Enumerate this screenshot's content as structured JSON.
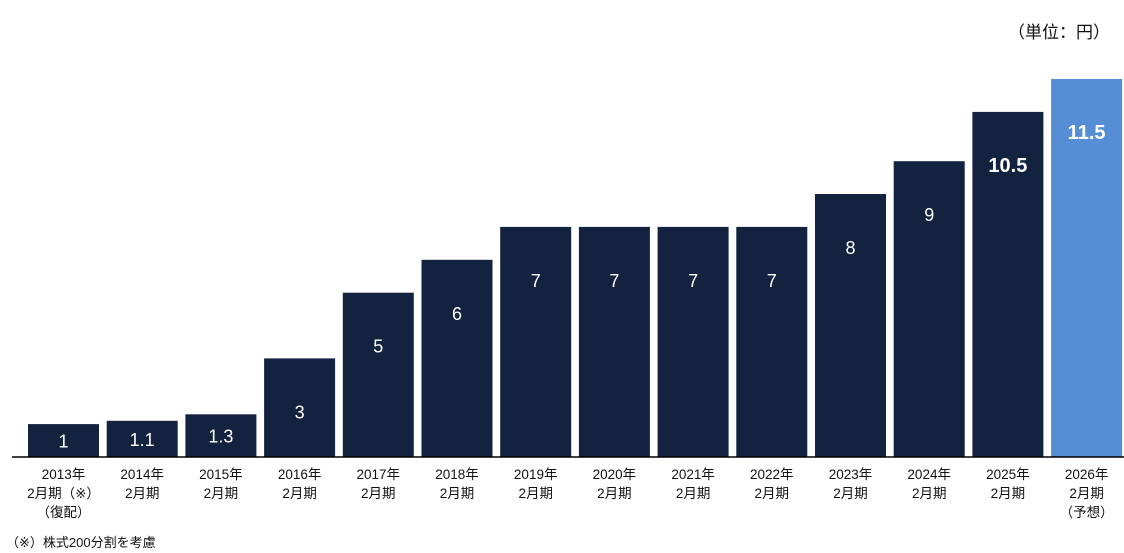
{
  "unit_label": "（単位：円）",
  "footnote": "（※）株式200分割を考慮",
  "colors": {
    "bar": "#13233f",
    "forecast_bar": "#558ed5",
    "label_text": "#ffffff",
    "axis": "#000000"
  },
  "chart_data": {
    "type": "bar",
    "categories": [
      [
        "2013年",
        "2月期（※）",
        "（復配）"
      ],
      [
        "2014年",
        "2月期"
      ],
      [
        "2015年",
        "2月期"
      ],
      [
        "2016年",
        "2月期"
      ],
      [
        "2017年",
        "2月期"
      ],
      [
        "2018年",
        "2月期"
      ],
      [
        "2019年",
        "2月期"
      ],
      [
        "2020年",
        "2月期"
      ],
      [
        "2021年",
        "2月期"
      ],
      [
        "2022年",
        "2月期"
      ],
      [
        "2023年",
        "2月期"
      ],
      [
        "2024年",
        "2月期"
      ],
      [
        "2025年",
        "2月期"
      ],
      [
        "2026年",
        "2月期",
        "（予想）"
      ]
    ],
    "values": [
      1,
      1.1,
      1.3,
      3,
      5,
      6,
      7,
      7,
      7,
      7,
      8,
      9,
      10.5,
      11.5
    ],
    "value_labels": [
      "1",
      "1.1",
      "1.3",
      "3",
      "5",
      "6",
      "7",
      "7",
      "7",
      "7",
      "8",
      "9",
      "10.5",
      "11.5"
    ],
    "highlighted_labels": [
      "10.5",
      "11.5"
    ],
    "forecast_index": 13,
    "ylim": [
      0,
      11.5
    ],
    "grid": false,
    "legend": "none",
    "title": "",
    "xlabel": "",
    "ylabel": "（単位：円）"
  }
}
